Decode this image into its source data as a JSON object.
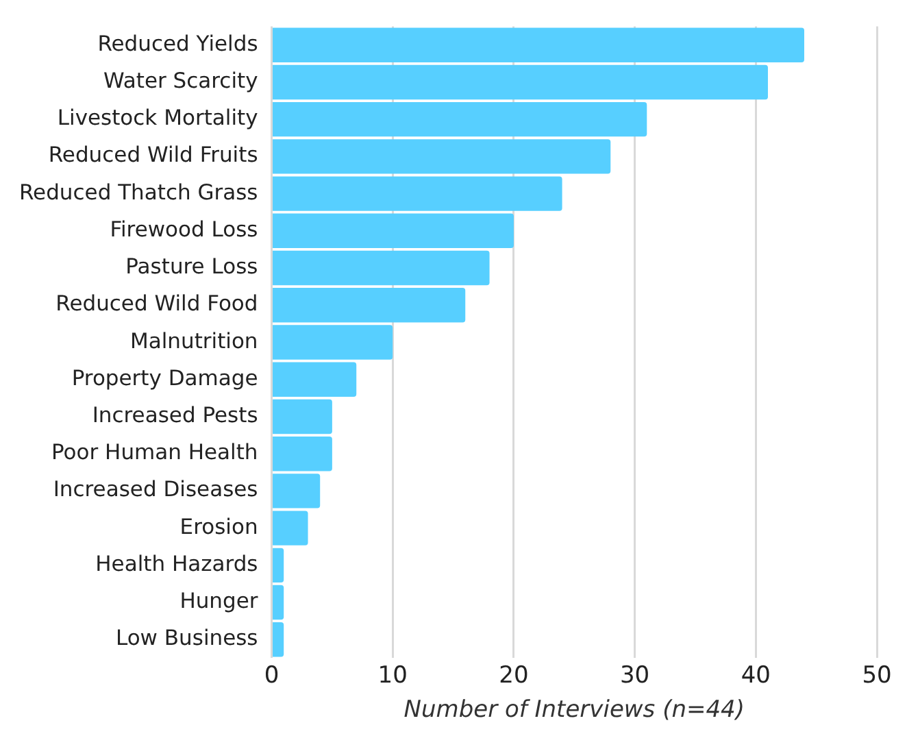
{
  "chart_data": {
    "type": "bar",
    "orientation": "horizontal",
    "xlabel": "Number of Interviews (n=44)",
    "categories": [
      "Reduced Yields",
      "Water Scarcity",
      "Livestock Mortality",
      "Reduced Wild Fruits",
      "Reduced Thatch Grass",
      "Firewood Loss",
      "Pasture Loss",
      "Reduced Wild Food",
      "Malnutrition",
      "Property Damage",
      "Increased Pests",
      "Poor Human Health",
      "Increased Diseases",
      "Erosion",
      "Health Hazards",
      "Hunger",
      "Low Business"
    ],
    "values": [
      44,
      41,
      31,
      28,
      24,
      20,
      18,
      16,
      10,
      7,
      5,
      5,
      4,
      3,
      1,
      1,
      1
    ],
    "color": "#57cfff",
    "xlim": [
      0,
      50
    ],
    "xticks": [
      0,
      10,
      20,
      30,
      40,
      50
    ],
    "grid": "x"
  }
}
